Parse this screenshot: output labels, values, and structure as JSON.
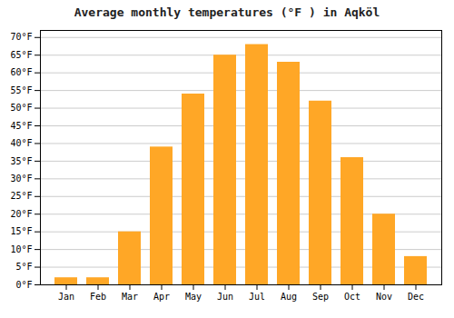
{
  "chart_data": {
    "type": "bar",
    "title": "Average monthly temperatures (°F ) in Aqköl",
    "categories": [
      "Jan",
      "Feb",
      "Mar",
      "Apr",
      "May",
      "Jun",
      "Jul",
      "Aug",
      "Sep",
      "Oct",
      "Nov",
      "Dec"
    ],
    "values": [
      2,
      2,
      15,
      39,
      54,
      65,
      68,
      63,
      52,
      36,
      20,
      8
    ],
    "color": "#FFA726",
    "ylim": [
      0,
      72
    ],
    "yticks": [
      {
        "value": 0,
        "label": "0°F"
      },
      {
        "value": 5,
        "label": "5°F"
      },
      {
        "value": 10,
        "label": "10°F"
      },
      {
        "value": 15,
        "label": "15°F"
      },
      {
        "value": 20,
        "label": "20°F"
      },
      {
        "value": 25,
        "label": "25°F"
      },
      {
        "value": 30,
        "label": "30°F"
      },
      {
        "value": 35,
        "label": "35°F"
      },
      {
        "value": 40,
        "label": "40°F"
      },
      {
        "value": 45,
        "label": "45°F"
      },
      {
        "value": 50,
        "label": "50°F"
      },
      {
        "value": 55,
        "label": "55°F"
      },
      {
        "value": 60,
        "label": "60°F"
      },
      {
        "value": 65,
        "label": "65°F"
      },
      {
        "value": 70,
        "label": "70°F"
      }
    ],
    "grid": true
  }
}
